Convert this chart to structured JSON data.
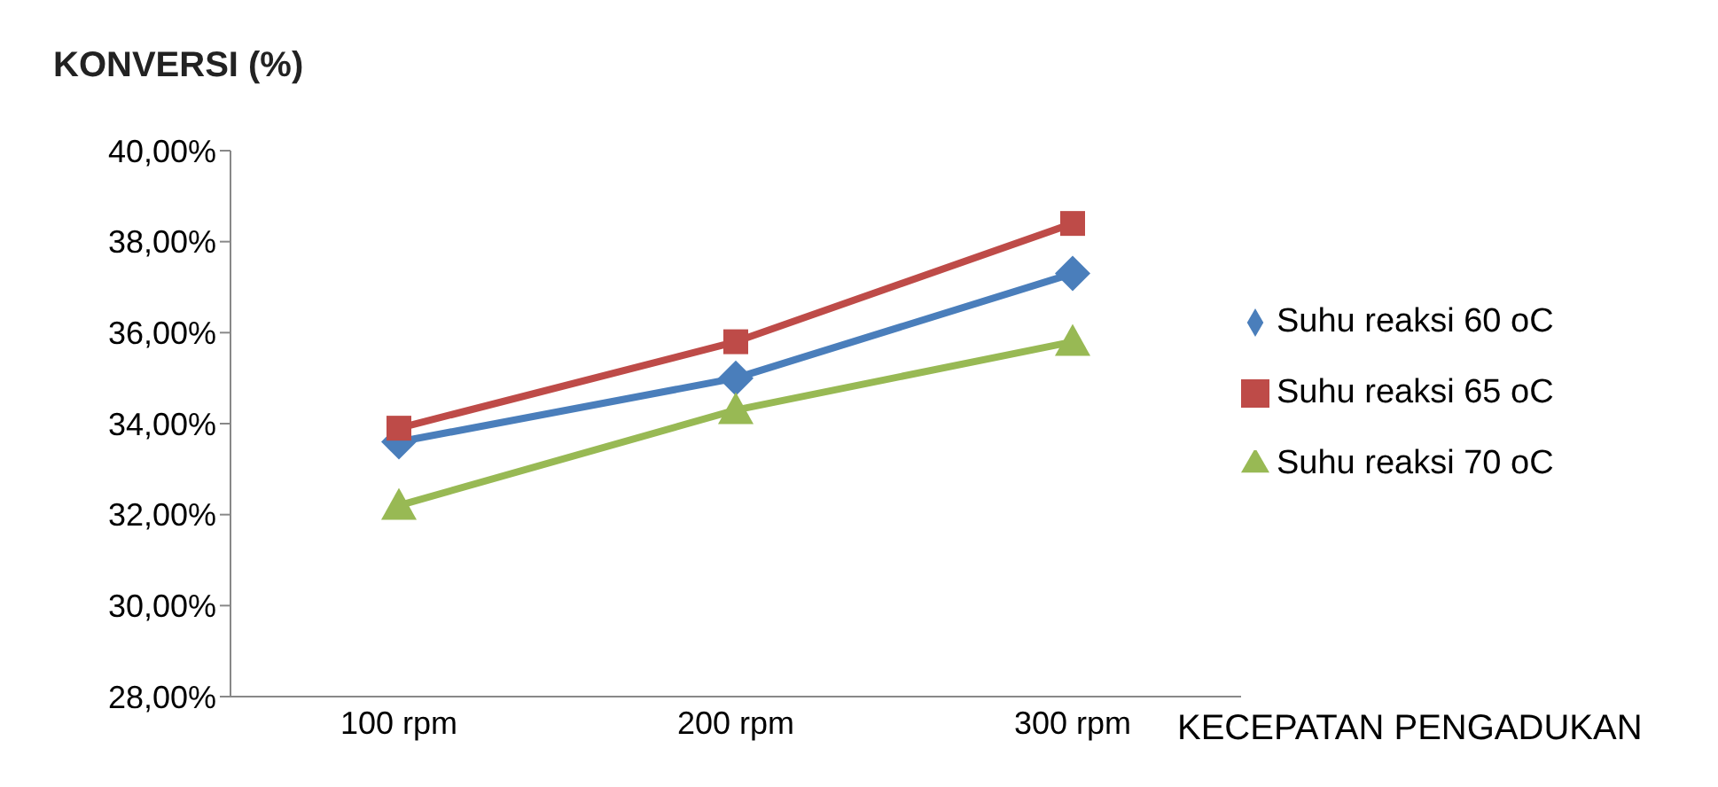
{
  "chart_data": {
    "type": "line",
    "ylabel": "KONVERSI (%)",
    "xlabel": "KECEPATAN PENGADUKAN",
    "categories": [
      "100 rpm",
      "200 rpm",
      "300 rpm"
    ],
    "series": [
      {
        "name": "Suhu reaksi 60 oC",
        "color": "#4a7ebb",
        "values": [
          33.6,
          35.0,
          37.3
        ],
        "marker": "diamond"
      },
      {
        "name": "Suhu reaksi 65 oC",
        "color": "#be4b48",
        "values": [
          33.9,
          35.8,
          38.4
        ],
        "marker": "square"
      },
      {
        "name": "Suhu reaksi 70 oC",
        "color": "#98b954",
        "values": [
          32.2,
          34.3,
          35.8
        ],
        "marker": "triangle"
      }
    ],
    "ylim": [
      28,
      40
    ],
    "yticks": [
      {
        "value": 28,
        "label": "28,00%"
      },
      {
        "value": 30,
        "label": "30,00%"
      },
      {
        "value": 32,
        "label": "32,00%"
      },
      {
        "value": 34,
        "label": "34,00%"
      },
      {
        "value": 36,
        "label": "36,00%"
      },
      {
        "value": 38,
        "label": "38,00%"
      },
      {
        "value": 40,
        "label": "40,00%"
      }
    ],
    "grid": false,
    "legend": "right",
    "line_style": "solid"
  }
}
